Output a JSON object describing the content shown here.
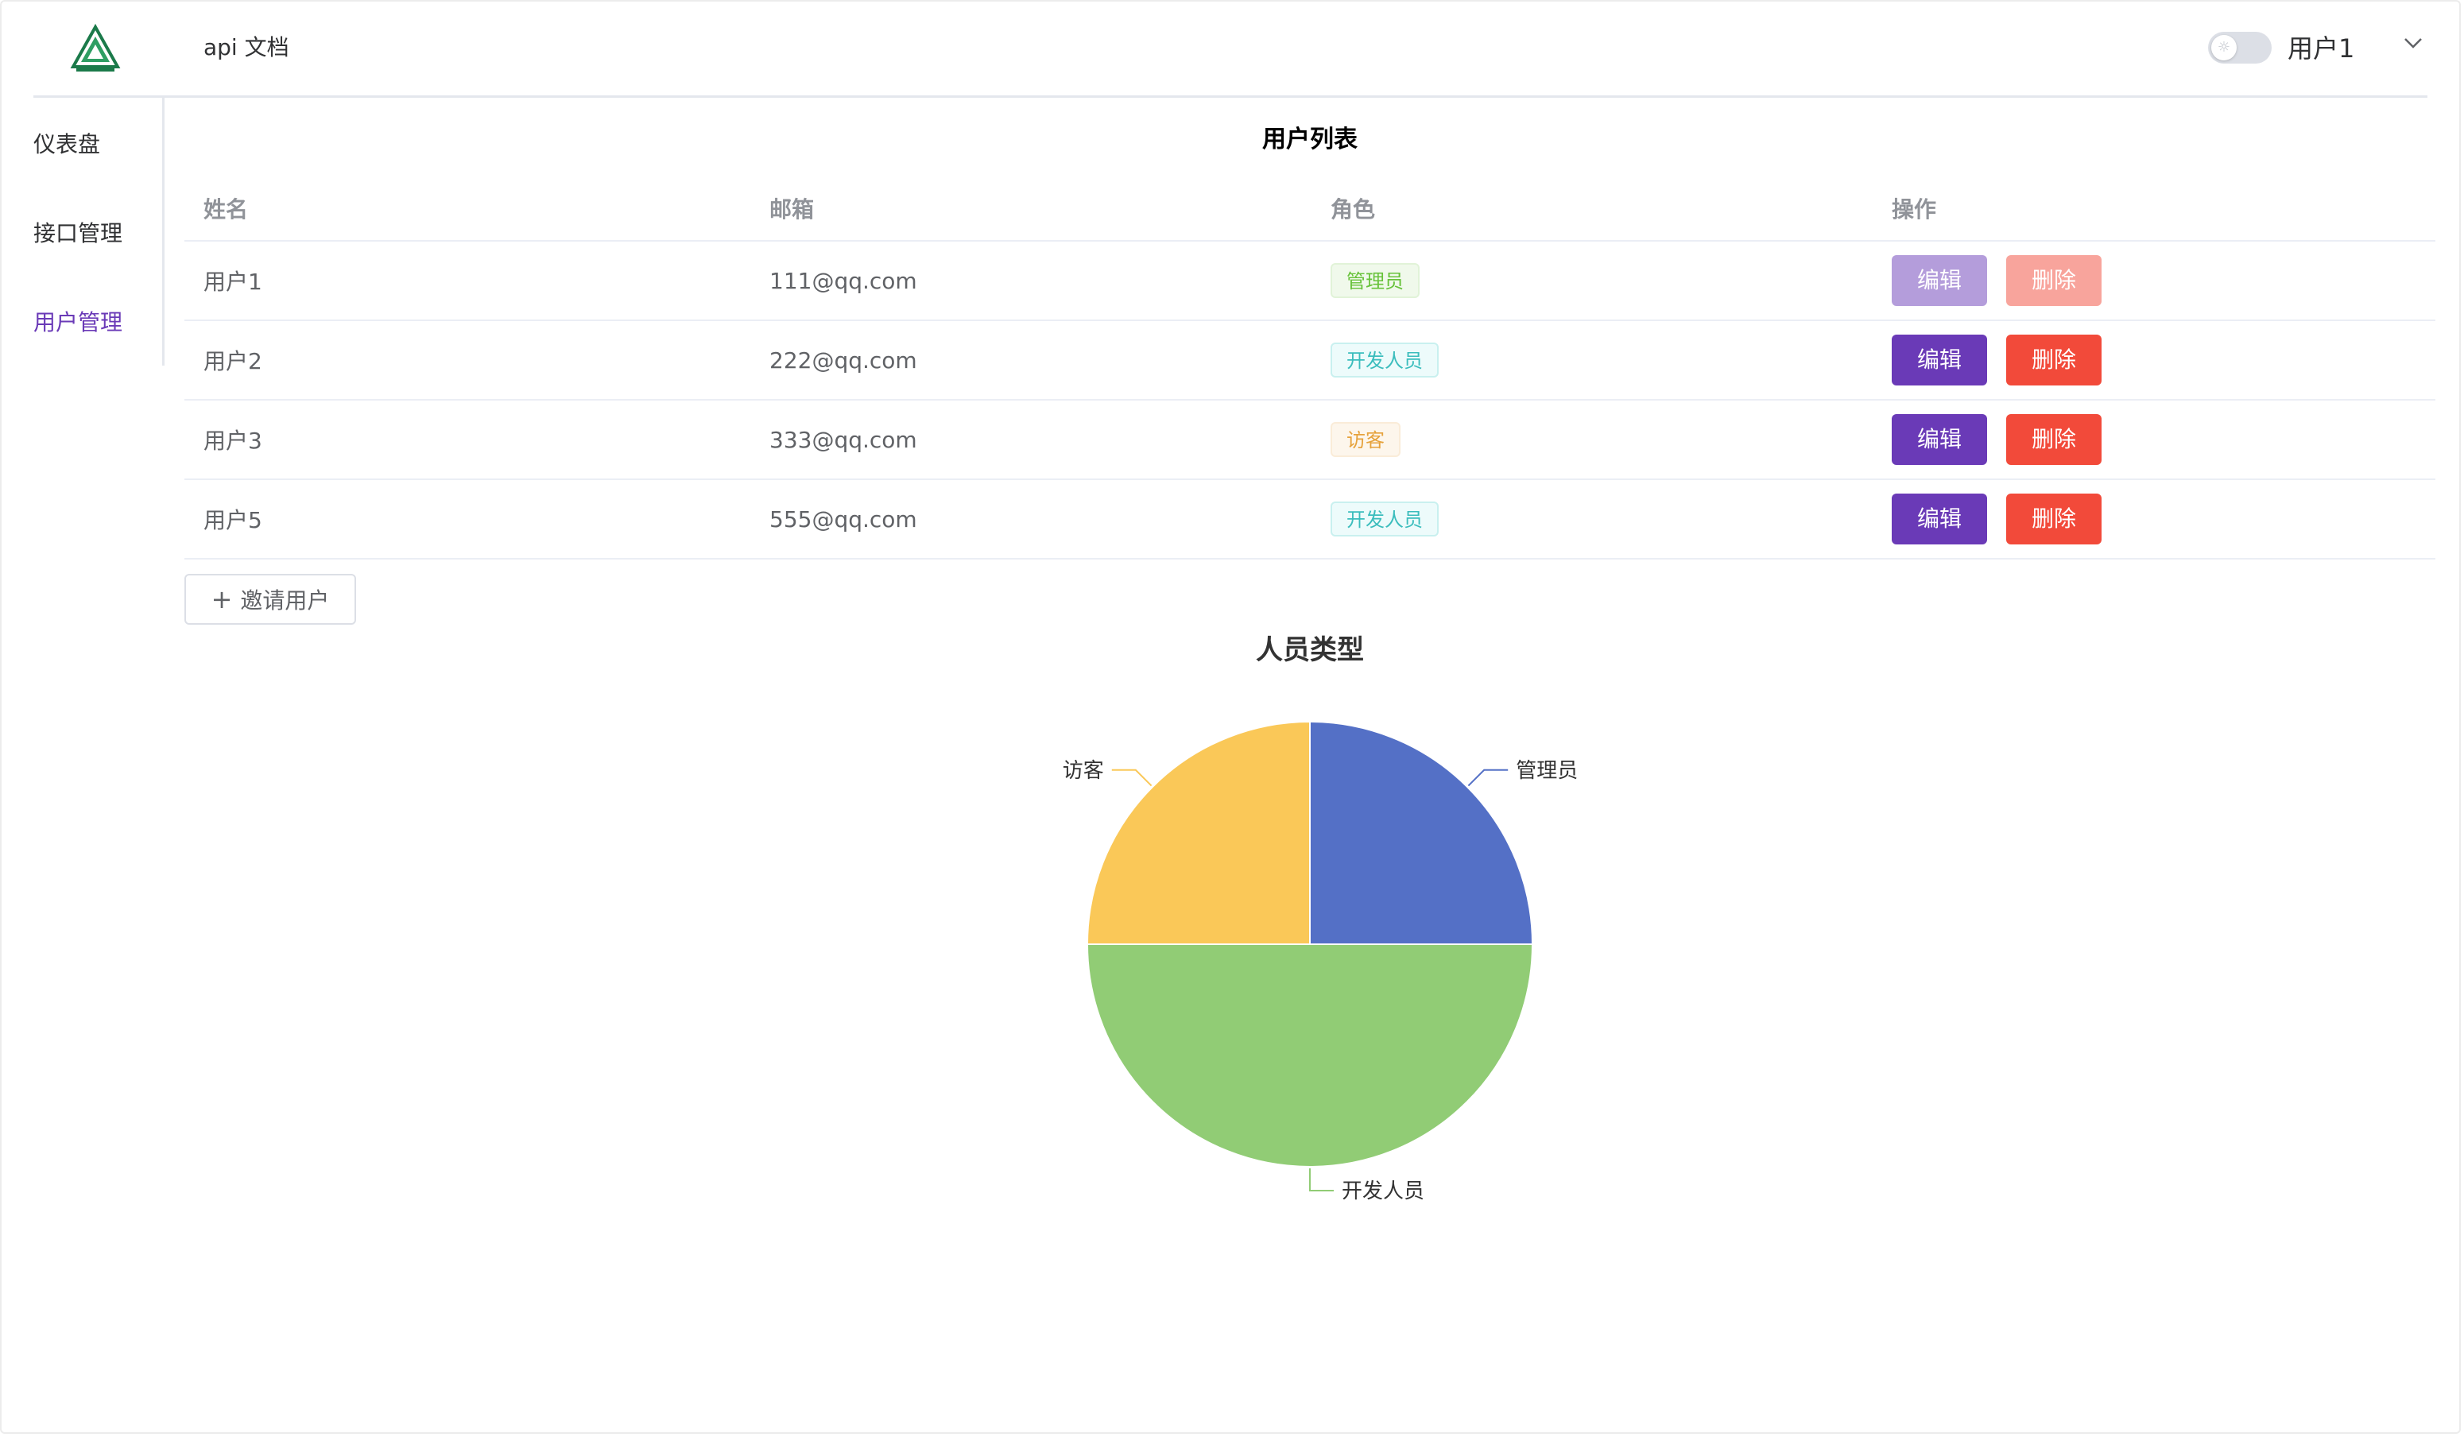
{
  "header": {
    "app_title": "api 文档",
    "user_name": "用户1"
  },
  "sidebar": {
    "items": [
      {
        "label": "仪表盘",
        "active": false
      },
      {
        "label": "接口管理",
        "active": false
      },
      {
        "label": "用户管理",
        "active": true
      }
    ]
  },
  "user_table": {
    "title": "用户列表",
    "columns": [
      "姓名",
      "邮箱",
      "角色",
      "操作"
    ],
    "rows": [
      {
        "name": "用户1",
        "email": "111@qq.com",
        "role": "管理员",
        "edit": "编辑",
        "delete": "删除"
      },
      {
        "name": "用户2",
        "email": "222@qq.com",
        "role": "开发人员",
        "edit": "编辑",
        "delete": "删除"
      },
      {
        "name": "用户3",
        "email": "333@qq.com",
        "role": "访客",
        "edit": "编辑",
        "delete": "删除"
      },
      {
        "name": "用户5",
        "email": "555@qq.com",
        "role": "开发人员",
        "edit": "编辑",
        "delete": "删除"
      }
    ],
    "invite_label": "邀请用户"
  },
  "colors": {
    "accent": "#6a3ab7",
    "danger": "#f24a3a"
  },
  "chart_data": {
    "type": "pie",
    "title": "人员类型",
    "slices": [
      {
        "label": "管理员",
        "value": 1,
        "color": "#5470c6"
      },
      {
        "label": "开发人员",
        "value": 2,
        "color": "#91cc75"
      },
      {
        "label": "访客",
        "value": 1,
        "color": "#fac858"
      }
    ],
    "legend": "none"
  }
}
